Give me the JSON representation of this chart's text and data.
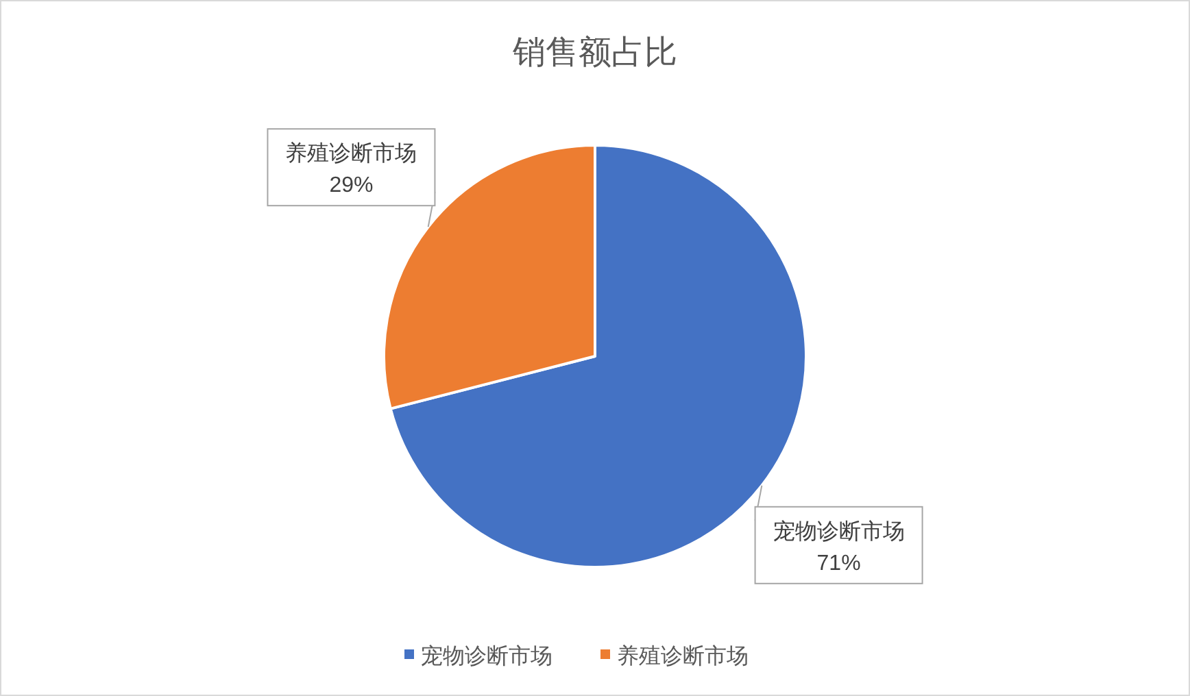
{
  "chart_data": {
    "type": "pie",
    "title": "销售额占比",
    "categories": [
      "宠物诊断市场",
      "养殖诊断市场"
    ],
    "values": [
      71,
      29
    ],
    "colors": [
      "#4472c4",
      "#ed7d31"
    ],
    "value_labels": [
      "71%",
      "29%"
    ],
    "legend": "bottom"
  }
}
